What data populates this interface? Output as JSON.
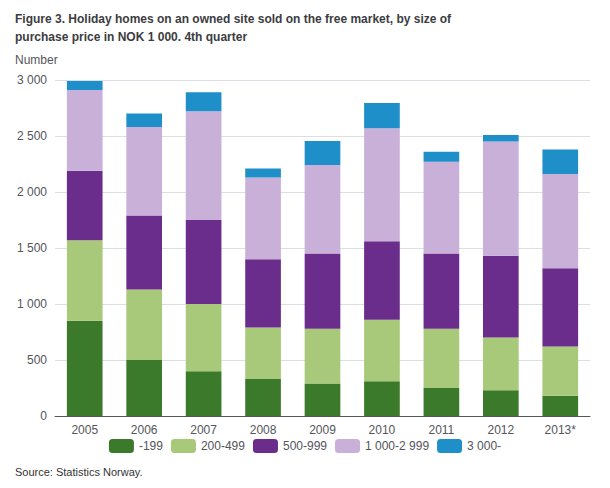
{
  "chart_data": {
    "type": "bar",
    "title": "Figure 3. Holiday homes on an owned site sold on the free market, by size of",
    "subtitle": "purchase price in NOK 1 000. 4th quarter",
    "ylabel": "Number",
    "annotations": [
      "Source: Statistics Norway."
    ],
    "categories": [
      "2005",
      "2006",
      "2007",
      "2008",
      "2009",
      "2010",
      "2011",
      "2012",
      "2013*"
    ],
    "series": [
      {
        "name": "-199",
        "color": "#3a7a2a",
        "values": [
          850,
          500,
          400,
          330,
          290,
          310,
          250,
          230,
          180
        ]
      },
      {
        "name": "200-499",
        "color": "#a8c87a",
        "values": [
          720,
          630,
          600,
          460,
          490,
          550,
          530,
          470,
          440
        ]
      },
      {
        "name": "500-999",
        "color": "#6b2d8b",
        "values": [
          620,
          660,
          750,
          610,
          670,
          700,
          670,
          730,
          700
        ]
      },
      {
        "name": "1 000-2 999",
        "color": "#c8b0d8",
        "values": [
          720,
          790,
          970,
          730,
          790,
          1010,
          820,
          1020,
          840
        ]
      },
      {
        "name": "3 000-",
        "color": "#1e8fc8",
        "values": [
          80,
          120,
          170,
          80,
          215,
          225,
          90,
          60,
          220
        ]
      }
    ],
    "stacked": true,
    "ylim": [
      0,
      3000
    ],
    "yticks": [
      0,
      500,
      {
        "value": 1000,
        "label": "1 000"
      },
      {
        "value": 1500,
        "label": "1 500"
      },
      {
        "value": 2000,
        "label": "2 000"
      },
      {
        "value": 2500,
        "label": "2 500"
      },
      {
        "value": 3000,
        "label": "3 000"
      }
    ],
    "grid": true,
    "legend": "bottom"
  }
}
